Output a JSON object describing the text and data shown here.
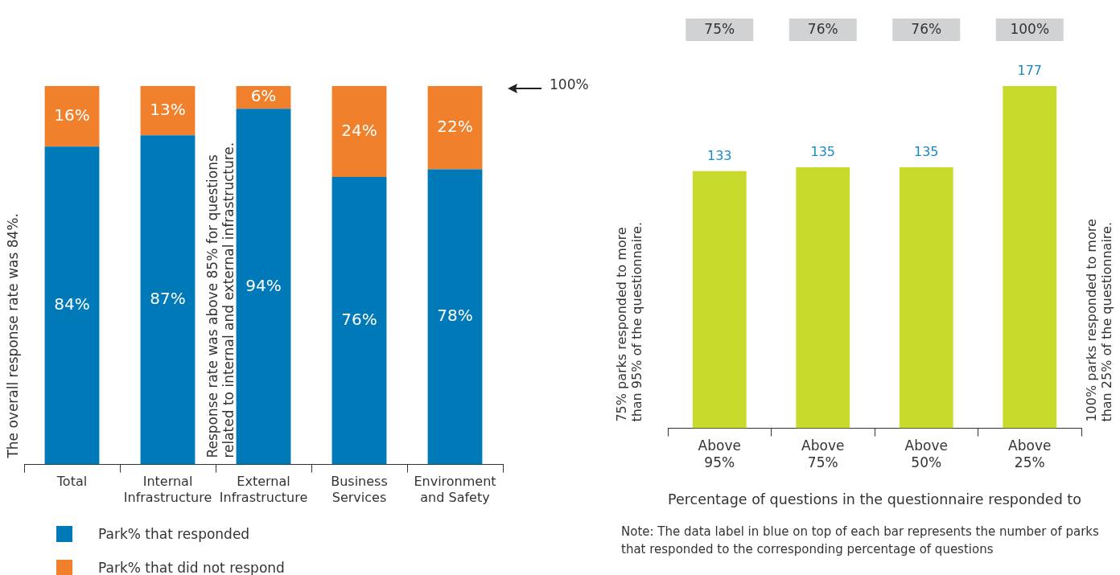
{
  "chart_data": [
    {
      "type": "bar",
      "stacked": true,
      "categories": [
        "Total",
        "Internal Infrastructure",
        "External Infrastructure",
        "Business Services",
        "Environment and Safety"
      ],
      "series": [
        {
          "name": "Park% that responded",
          "color": "#0079b8",
          "values": [
            84,
            87,
            94,
            76,
            78
          ],
          "value_labels": [
            "84%",
            "87%",
            "94%",
            "76%",
            "78%"
          ]
        },
        {
          "name": "Park% that did not respond",
          "color": "#f0802c",
          "values": [
            16,
            13,
            6,
            24,
            22
          ],
          "value_labels": [
            "16%",
            "13%",
            "6%",
            "24%",
            "22%"
          ]
        }
      ],
      "ylim": [
        0,
        100
      ],
      "tick_labels": "x",
      "legend": "bottom left",
      "annotations": [
        "The overall response rate was 84%.",
        "Response rate was above 85% for questions related to internal and external infrastructure.",
        "100%"
      ]
    },
    {
      "type": "bar",
      "categories": [
        "Above 95%",
        "Above 75%",
        "Above 50%",
        "Above 25%"
      ],
      "values": [
        133,
        135,
        135,
        177
      ],
      "color": "#c8da2b",
      "ylim": [
        0,
        177
      ],
      "tick_labels": "x",
      "data_labels": true,
      "xlabel": "Percentage of questions in the questionnaire responded to",
      "annotations": [
        "75%",
        "76%",
        "76%",
        "100%",
        "75% parks responded to more than 95% of the questionnaire.",
        "100% parks responded to more than 25% of the questionnaire.",
        "Note: The data label in blue on top of each bar represents the number of parks that responded to the corresponding percentage of questions"
      ]
    }
  ]
}
